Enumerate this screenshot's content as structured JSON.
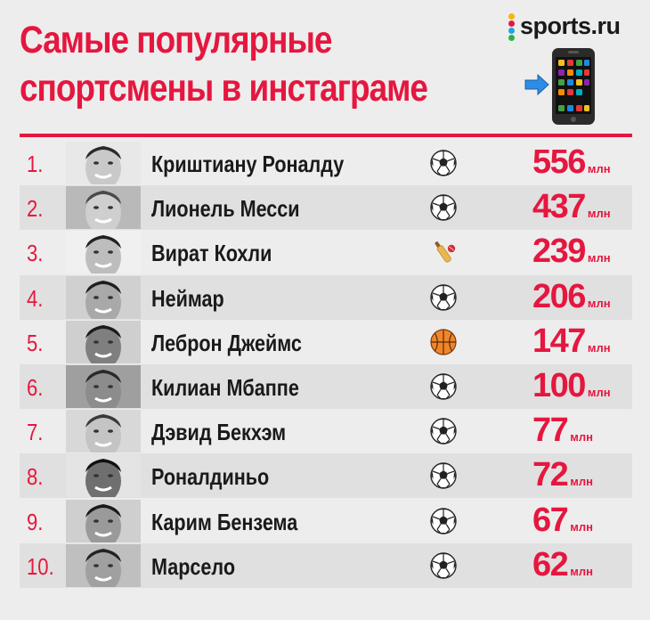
{
  "header": {
    "title_line1": "Самые популярные",
    "title_line2": "спортсмены в инстаграме",
    "logo_text": "sports.ru"
  },
  "colors": {
    "accent": "#e5173f",
    "background": "#ededed",
    "row_shade": "#e0e0e0",
    "logo_dots": [
      "#f5b700",
      "#e5173f",
      "#1aa6e1",
      "#27b34a"
    ]
  },
  "icons": {
    "logo": "sports-ru-dots-icon",
    "phone": "smartphone-icon",
    "arrow": "arrow-right-icon",
    "football": "soccer-ball-icon",
    "cricket": "cricket-bat-ball-icon",
    "basketball": "basketball-icon"
  },
  "chart_data": {
    "type": "table",
    "columns": [
      "rank",
      "name",
      "sport",
      "followers"
    ],
    "unit": "млн",
    "rows": [
      {
        "rank": "1.",
        "name": "Криштиану Роналду",
        "sport": "football",
        "value": 556
      },
      {
        "rank": "2.",
        "name": "Лионель Месси",
        "sport": "football",
        "value": 437
      },
      {
        "rank": "3.",
        "name": "Вират Кохли",
        "sport": "cricket",
        "value": 239
      },
      {
        "rank": "4.",
        "name": "Неймар",
        "sport": "football",
        "value": 206
      },
      {
        "rank": "5.",
        "name": "Леброн Джеймс",
        "sport": "basketball",
        "value": 147
      },
      {
        "rank": "6.",
        "name": "Килиан Мбаппе",
        "sport": "football",
        "value": 100
      },
      {
        "rank": "7.",
        "name": "Дэвид Бекхэм",
        "sport": "football",
        "value": 77
      },
      {
        "rank": "8.",
        "name": "Роналдиньо",
        "sport": "football",
        "value": 72
      },
      {
        "rank": "9.",
        "name": "Карим Бензема",
        "sport": "football",
        "value": 67
      },
      {
        "rank": "10.",
        "name": "Марсело",
        "sport": "football",
        "value": 62
      }
    ]
  }
}
